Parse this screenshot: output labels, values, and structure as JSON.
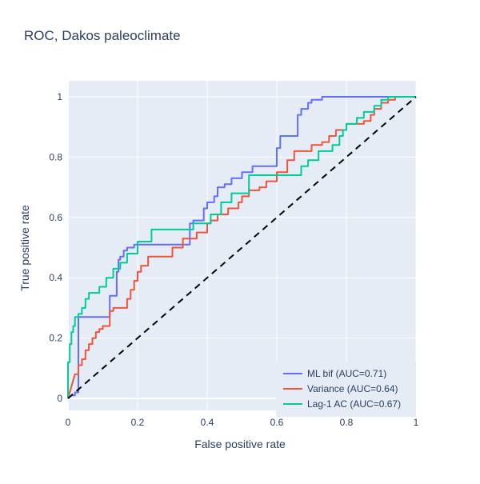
{
  "chart_data": {
    "type": "line",
    "title": "ROC, Dakos paleoclimate",
    "xlabel": "False positive rate",
    "ylabel": "True positive rate",
    "xlim": [
      0,
      1
    ],
    "ylim": [
      0,
      1
    ],
    "grid": true,
    "legend_position": "bottom-right",
    "x_ticks": [
      "0",
      "0.2",
      "0.4",
      "0.6",
      "0.8",
      "1"
    ],
    "y_ticks": [
      "0",
      "0.2",
      "0.4",
      "0.6",
      "0.8",
      "1"
    ],
    "colors": {
      "plot_background": "#e5ecf6",
      "grid": "#ffffff",
      "diagonal": "#000000"
    },
    "series": [
      {
        "name": "ML bif (AUC=0.71)",
        "color": "#636efa",
        "x": [
          0,
          0.01,
          0.02,
          0.02,
          0.03,
          0.03,
          0.04,
          0.04,
          0.12,
          0.12,
          0.14,
          0.14,
          0.145,
          0.145,
          0.15,
          0.15,
          0.16,
          0.16,
          0.17,
          0.17,
          0.19,
          0.19,
          0.35,
          0.35,
          0.36,
          0.36,
          0.39,
          0.39,
          0.4,
          0.4,
          0.42,
          0.42,
          0.43,
          0.43,
          0.45,
          0.45,
          0.47,
          0.47,
          0.5,
          0.5,
          0.53,
          0.53,
          0.6,
          0.6,
          0.61,
          0.61,
          0.63,
          0.63,
          0.66,
          0.66,
          0.67,
          0.67,
          0.69,
          0.69,
          0.7,
          0.7,
          0.73,
          0.73,
          0.93,
          1.0
        ],
        "y": [
          0,
          0.01,
          0.01,
          0.02,
          0.02,
          0.27,
          0.27,
          0.27,
          0.27,
          0.34,
          0.34,
          0.42,
          0.42,
          0.46,
          0.46,
          0.47,
          0.47,
          0.49,
          0.49,
          0.5,
          0.5,
          0.51,
          0.51,
          0.58,
          0.58,
          0.59,
          0.59,
          0.63,
          0.63,
          0.65,
          0.65,
          0.67,
          0.67,
          0.7,
          0.7,
          0.71,
          0.71,
          0.73,
          0.73,
          0.75,
          0.75,
          0.77,
          0.77,
          0.83,
          0.83,
          0.87,
          0.87,
          0.87,
          0.87,
          0.94,
          0.94,
          0.96,
          0.96,
          0.98,
          0.98,
          0.99,
          0.99,
          1.0,
          1.0,
          1.0
        ]
      },
      {
        "name": "Variance (AUC=0.64)",
        "color": "#ef553b",
        "x": [
          0,
          0.02,
          0.03,
          0.03,
          0.04,
          0.04,
          0.05,
          0.05,
          0.06,
          0.06,
          0.07,
          0.07,
          0.08,
          0.08,
          0.09,
          0.09,
          0.1,
          0.1,
          0.12,
          0.12,
          0.13,
          0.13,
          0.17,
          0.17,
          0.18,
          0.18,
          0.19,
          0.19,
          0.2,
          0.2,
          0.21,
          0.21,
          0.23,
          0.23,
          0.3,
          0.3,
          0.33,
          0.33,
          0.37,
          0.37,
          0.4,
          0.4,
          0.41,
          0.41,
          0.43,
          0.43,
          0.46,
          0.46,
          0.49,
          0.49,
          0.5,
          0.5,
          0.52,
          0.52,
          0.55,
          0.55,
          0.57,
          0.57,
          0.6,
          0.6,
          0.63,
          0.63,
          0.65,
          0.65,
          0.7,
          0.7,
          0.73,
          0.73,
          0.75,
          0.75,
          0.77,
          0.77,
          0.8,
          0.8,
          0.85,
          0.85,
          0.87,
          0.87,
          0.88,
          0.88,
          0.9,
          0.9,
          0.92,
          0.92,
          0.94,
          0.94,
          1.0
        ],
        "y": [
          0,
          0.08,
          0.08,
          0.11,
          0.11,
          0.13,
          0.13,
          0.16,
          0.16,
          0.18,
          0.18,
          0.2,
          0.2,
          0.22,
          0.22,
          0.23,
          0.23,
          0.24,
          0.24,
          0.29,
          0.29,
          0.3,
          0.3,
          0.33,
          0.33,
          0.36,
          0.36,
          0.39,
          0.39,
          0.42,
          0.42,
          0.44,
          0.44,
          0.47,
          0.47,
          0.5,
          0.5,
          0.53,
          0.53,
          0.55,
          0.55,
          0.58,
          0.58,
          0.59,
          0.59,
          0.61,
          0.61,
          0.63,
          0.63,
          0.65,
          0.65,
          0.67,
          0.67,
          0.69,
          0.69,
          0.7,
          0.7,
          0.72,
          0.72,
          0.75,
          0.75,
          0.79,
          0.79,
          0.82,
          0.82,
          0.84,
          0.84,
          0.85,
          0.85,
          0.87,
          0.87,
          0.89,
          0.89,
          0.91,
          0.91,
          0.92,
          0.92,
          0.94,
          0.94,
          0.96,
          0.96,
          0.98,
          0.98,
          0.99,
          0.99,
          1.0,
          1.0
        ]
      },
      {
        "name": "Lag-1 AC (AUC=0.67)",
        "color": "#00cc96",
        "x": [
          0,
          0,
          0.005,
          0.005,
          0.01,
          0.01,
          0.015,
          0.015,
          0.02,
          0.02,
          0.03,
          0.03,
          0.04,
          0.04,
          0.05,
          0.05,
          0.06,
          0.06,
          0.09,
          0.09,
          0.11,
          0.11,
          0.13,
          0.13,
          0.15,
          0.15,
          0.17,
          0.17,
          0.2,
          0.2,
          0.24,
          0.24,
          0.36,
          0.36,
          0.41,
          0.41,
          0.44,
          0.44,
          0.47,
          0.47,
          0.52,
          0.52,
          0.6,
          0.6,
          0.67,
          0.67,
          0.69,
          0.69,
          0.72,
          0.72,
          0.76,
          0.76,
          0.78,
          0.78,
          0.79,
          0.79,
          0.8,
          0.8,
          0.83,
          0.83,
          0.85,
          0.85,
          0.88,
          0.88,
          0.9,
          0.9,
          0.92,
          0.92,
          1.0
        ],
        "y": [
          0,
          0.12,
          0.12,
          0.18,
          0.18,
          0.22,
          0.22,
          0.24,
          0.24,
          0.27,
          0.27,
          0.28,
          0.28,
          0.3,
          0.3,
          0.33,
          0.33,
          0.35,
          0.35,
          0.37,
          0.37,
          0.4,
          0.4,
          0.43,
          0.43,
          0.45,
          0.45,
          0.48,
          0.48,
          0.52,
          0.52,
          0.56,
          0.56,
          0.58,
          0.58,
          0.61,
          0.61,
          0.65,
          0.65,
          0.68,
          0.68,
          0.74,
          0.74,
          0.74,
          0.74,
          0.77,
          0.77,
          0.79,
          0.79,
          0.82,
          0.82,
          0.84,
          0.84,
          0.87,
          0.87,
          0.89,
          0.89,
          0.91,
          0.91,
          0.93,
          0.93,
          0.95,
          0.95,
          0.97,
          0.97,
          0.99,
          0.99,
          1.0,
          1.0
        ]
      },
      {
        "name": "",
        "color": "#000000",
        "dash": "dash",
        "x": [
          0,
          1
        ],
        "y": [
          0,
          1
        ]
      }
    ]
  }
}
